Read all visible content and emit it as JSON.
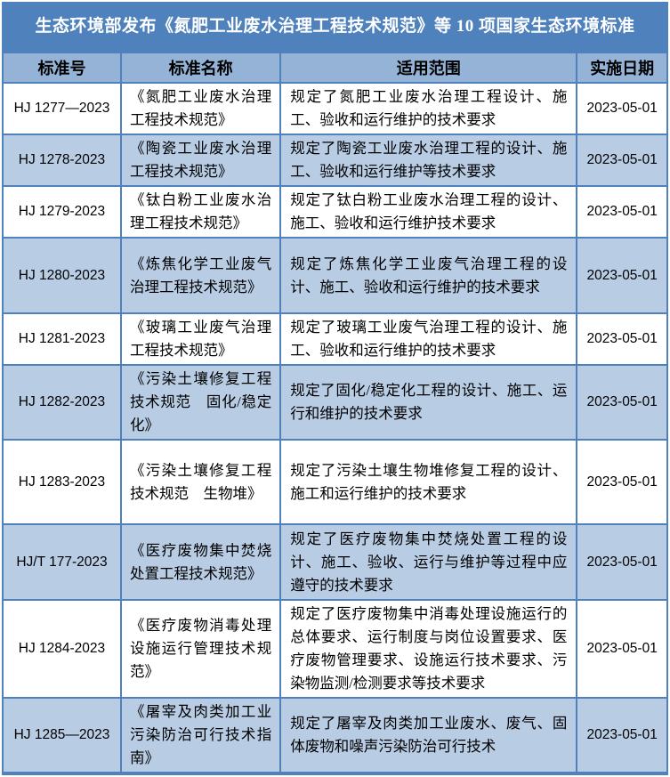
{
  "title": "生态环境部发布《氮肥工业废水治理工程技术规范》等 10 项国家生态环境标准",
  "colors": {
    "title_bg": "#4f81bd",
    "header_bg": "#95b3d7",
    "band_bg": "#b8cce4",
    "border": "#4f81bd",
    "title_text": "#ffffff",
    "header_text": "#000000",
    "body_text": "#000000"
  },
  "table": {
    "headers": [
      "标准号",
      "标准名称",
      "适用范围",
      "实施日期"
    ],
    "rows": [
      {
        "code": "HJ 1277—2023",
        "name": "《氮肥工业废水治理工程技术规范》",
        "scope": "规定了氮肥工业废水治理工程设计、施工、验收和运行维护的技术要求",
        "date": "2023-05-01"
      },
      {
        "code": "HJ 1278-2023",
        "name": "《陶瓷工业废水治理工程技术规范》",
        "scope": "规定了陶瓷工业废水治理工程的设计、施工、验收和运行维护等技术要求",
        "date": "2023-05-01"
      },
      {
        "code": "HJ 1279-2023",
        "name": "《钛白粉工业废水治理工程技术规范》",
        "scope": "规定了钛白粉工业废水治理工程的设计、施工、验收和运行维护技术要求",
        "date": "2023-05-01"
      },
      {
        "code": "HJ 1280-2023",
        "name": "《炼焦化学工业废气治理工程技术规范》",
        "scope": "规定了炼焦化学工业废气治理工程的设计、施工、验收和运行维护的技术要求",
        "date": "2023-05-01"
      },
      {
        "code": "HJ 1281-2023",
        "name": "《玻璃工业废气治理工程技术规范》",
        "scope": "规定了玻璃工业废气治理工程的设计、施工、验收和运行维护的技术要求",
        "date": "2023-05-01"
      },
      {
        "code": "HJ 1282-2023",
        "name": "《污染土壤修复工程技术规范　固化/稳定化》",
        "scope": "规定了固化/稳定化工程的设计、施工、运行和维护的技术要求",
        "date": "2023-05-01"
      },
      {
        "code": "HJ 1283-2023",
        "name": "《污染土壤修复工程技术规范　生物堆》",
        "scope": "规定了污染土壤生物堆修复工程的设计、施工和运行维护的技术要求",
        "date": "2023-05-01"
      },
      {
        "code": "HJ/T 177-2023",
        "name": "《医疗废物集中焚烧处置工程技术规范》",
        "scope": "规定了医疗废物集中焚烧处置工程的设计、施工、验收、运行与维护等过程中应遵守的技术要求",
        "date": "2023-05-01"
      },
      {
        "code": "HJ 1284-2023",
        "name": "《医疗废物消毒处理设施运行管理技术规范》",
        "scope": "规定了医疗废物集中消毒处理设施运行的总体要求、运行制度与岗位设置要求、医疗废物管理要求、设施运行技术要求、污染物监测/检测要求等技术要求",
        "date": "2023-05-01"
      },
      {
        "code": "HJ 1285—2023",
        "name": "《屠宰及肉类加工业污染防治可行技术指南》",
        "scope": "规定了屠宰及肉类加工业废水、废气、固体废物和噪声污染防治可行技术",
        "date": "2023-05-01"
      }
    ]
  }
}
